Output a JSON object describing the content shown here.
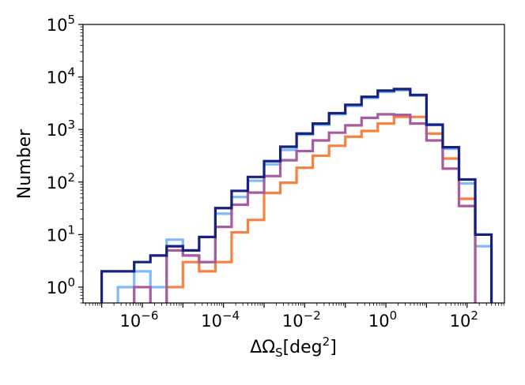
{
  "chart_data": {
    "type": "histogram-step",
    "title": "",
    "xlabel": "ΔΩ_S[deg^2]",
    "xlabel_parts": {
      "main": "ΔΩ",
      "sub": "S",
      "bracket_open": "[deg",
      "sup": "2",
      "bracket_close": "]"
    },
    "ylabel": "Number",
    "xscale": "log",
    "yscale": "log",
    "xlim_log10": [
      -7.46,
      2.92
    ],
    "ylim": [
      0.5,
      100000
    ],
    "x_ticks": [
      {
        "base": "10",
        "exp": "−6",
        "log": -6
      },
      {
        "base": "10",
        "exp": "−4",
        "log": -4
      },
      {
        "base": "10",
        "exp": "−2",
        "log": -2
      },
      {
        "base": "10",
        "exp": "0",
        "log": 0
      },
      {
        "base": "10",
        "exp": "2",
        "log": 2
      }
    ],
    "y_ticks": [
      {
        "base": "10",
        "exp": "0",
        "log": 0
      },
      {
        "base": "10",
        "exp": "1",
        "log": 1
      },
      {
        "base": "10",
        "exp": "2",
        "log": 2
      },
      {
        "base": "10",
        "exp": "3",
        "log": 3
      },
      {
        "base": "10",
        "exp": "4",
        "log": 4
      },
      {
        "base": "10",
        "exp": "5",
        "log": 5
      }
    ],
    "grid": false,
    "legend": "none",
    "bin_edges_log10": [
      -7.0,
      -6.6,
      -6.2,
      -5.8,
      -5.4,
      -5.0,
      -4.6,
      -4.2,
      -3.8,
      -3.4,
      -3.0,
      -2.6,
      -2.2,
      -1.8,
      -1.4,
      -1.0,
      -0.6,
      -0.2,
      0.2,
      0.6,
      1.0,
      1.4,
      1.8,
      2.2,
      2.6
    ],
    "series": [
      {
        "color": "#7fbaf5",
        "values": [
          0,
          1,
          2,
          1,
          8,
          4,
          3,
          25,
          52,
          106,
          218,
          410,
          800,
          1230,
          1950,
          2800,
          4000,
          5200,
          5600,
          4400,
          1260,
          430,
          94,
          6
        ]
      },
      {
        "color": "#f7813f",
        "values": [
          0,
          0,
          0,
          0,
          1,
          3,
          2,
          3,
          11,
          19,
          62,
          97,
          187,
          318,
          490,
          730,
          940,
          1300,
          1740,
          1740,
          840,
          280,
          48,
          0
        ]
      },
      {
        "color": "#a65c9f",
        "values": [
          0,
          0,
          1,
          0,
          5,
          4,
          3,
          14,
          37,
          63,
          130,
          260,
          390,
          620,
          870,
          1200,
          1670,
          1950,
          1900,
          1300,
          620,
          180,
          35,
          0
        ]
      },
      {
        "color": "#15207f",
        "values": [
          2,
          2,
          3,
          4,
          6,
          5,
          9,
          32,
          68,
          125,
          250,
          470,
          840,
          1300,
          2050,
          2960,
          4200,
          5500,
          5900,
          4560,
          1230,
          460,
          112,
          10
        ]
      }
    ]
  }
}
